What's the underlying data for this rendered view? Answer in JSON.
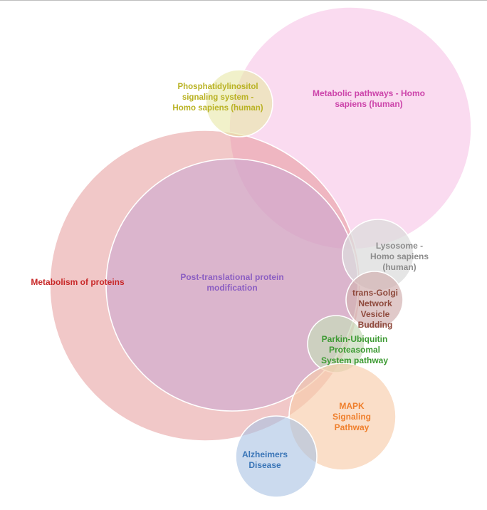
{
  "diagram": {
    "type": "venn-bubble",
    "sets": [
      {
        "id": "metabolic",
        "lines": [
          "Metabolic pathways - Homo",
          "sapiens (human)"
        ],
        "color": "#ee88cc",
        "fill_opacity": 0.3,
        "label_color": "#cc44aa"
      },
      {
        "id": "metabolism-proteins",
        "lines": [
          "Metabolism of proteins"
        ],
        "color": "#e39191",
        "fill_opacity": 0.5,
        "label_color": "#c82828"
      },
      {
        "id": "ptm",
        "lines": [
          "Post-translational protein",
          "modification"
        ],
        "color": "#c9a5d2",
        "fill_opacity": 0.55,
        "label_color": "#8b5ec2"
      },
      {
        "id": "phosphatidylinositol",
        "lines": [
          "Phosphatidylinositol",
          "signaling system -",
          "Homo sapiens (human)"
        ],
        "color": "#e7e7a6",
        "fill_opacity": 0.6,
        "label_color": "#b9b223"
      },
      {
        "id": "lysosome",
        "lines": [
          "Lysosome -",
          "Homo sapiens",
          "(human)"
        ],
        "color": "#dcdcdc",
        "fill_opacity": 0.75,
        "label_color": "#8c8c8c"
      },
      {
        "id": "trans-golgi",
        "lines": [
          "trans-Golgi",
          "Network",
          "Vesicle",
          "Budding"
        ],
        "color": "#d3b2b2",
        "fill_opacity": 0.7,
        "label_color": "#8f4a3d"
      },
      {
        "id": "parkin",
        "lines": [
          "Parkin-Ubiquitin",
          "Proteasomal",
          "System pathway"
        ],
        "color": "#c7dcbb",
        "fill_opacity": 0.7,
        "label_color": "#3c9a32"
      },
      {
        "id": "mapk",
        "lines": [
          "MAPK",
          "Signaling",
          "Pathway"
        ],
        "color": "#f8ccab",
        "fill_opacity": 0.65,
        "label_color": "#ef7f2c"
      },
      {
        "id": "alzheimers",
        "lines": [
          "Alzheimers",
          "Disease"
        ],
        "color": "#a9c1e3",
        "fill_opacity": 0.6,
        "label_color": "#3a75b7"
      }
    ]
  }
}
